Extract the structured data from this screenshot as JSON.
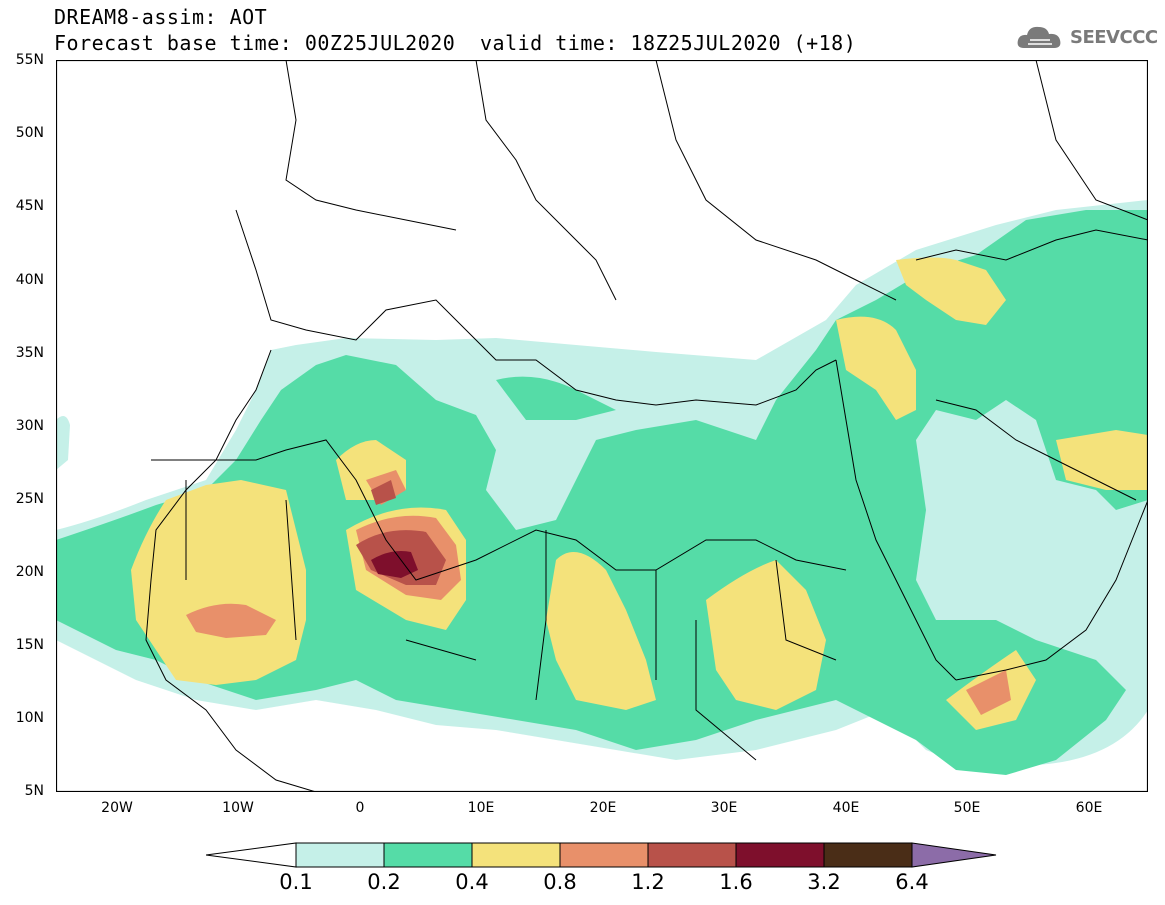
{
  "header": {
    "title": "DREAM8-assim: AOT",
    "base_time": "Forecast base time: 00Z25JUL2020",
    "valid_time": "valid time: 18Z25JUL2020 (+18)",
    "logo_text": "SEEVCCC"
  },
  "map": {
    "lat_ticks": [
      "55N",
      "50N",
      "45N",
      "40N",
      "35N",
      "30N",
      "25N",
      "20N",
      "15N",
      "10N",
      "5N"
    ],
    "lon_ticks": [
      "20W",
      "10W",
      "0",
      "10E",
      "20E",
      "30E",
      "40E",
      "50E",
      "60E"
    ],
    "colors": {
      "c01": "#c5f0e8",
      "c02": "#55dca7",
      "c04": "#f4e27b",
      "c08": "#e8906a",
      "c12": "#b8524a",
      "c16": "#7e0f2c",
      "c32": "#4a2d17",
      "c64": "#8c6ca8",
      "border": "#000000"
    }
  },
  "colorbar": {
    "labels": [
      "0.1",
      "0.2",
      "0.4",
      "0.8",
      "1.2",
      "1.6",
      "3.2",
      "6.4"
    ],
    "colors": [
      "#c5f0e8",
      "#55dca7",
      "#f4e27b",
      "#e8906a",
      "#b8524a",
      "#7e0f2c",
      "#4a2d17"
    ],
    "under_color": "#ffffff",
    "over_color": "#8c6ca8"
  }
}
